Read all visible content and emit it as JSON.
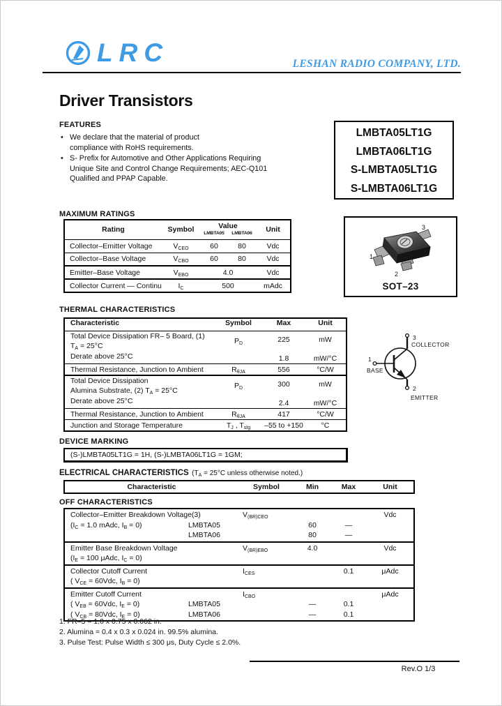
{
  "brand": {
    "logo_text": "LRC",
    "company": "LESHAN RADIO COMPANY, LTD.",
    "blue": "#3E9BE4"
  },
  "title": "Driver Transistors",
  "features": {
    "heading": "FEATURES",
    "items": [
      {
        "lines": [
          "We declare that the material of product",
          "compliance with RoHS requirements."
        ]
      },
      {
        "lines": [
          "S- Prefix for Automotive and Other Applications Requiring",
          "Unique Site and Control Change Requirements; AEC-Q101",
          "Qualified and PPAP Capable."
        ]
      }
    ]
  },
  "parts": [
    "LMBTA05LT1G",
    "LMBTA06LT1G",
    "S-LMBTA05LT1G",
    "S-LMBTA06LT1G"
  ],
  "package": {
    "name": "SOT–23",
    "pin1": "1",
    "pin2": "2",
    "pin3": "3"
  },
  "max_ratings": {
    "heading": "MAXIMUM RATINGS",
    "headers": {
      "rating": "Rating",
      "symbol": "Symbol",
      "value": "Value",
      "dev1": "LMBTA05",
      "dev2": "LMBTA06",
      "unit": "Unit"
    },
    "rows": [
      {
        "rating": "Collector–Emitter Voltage",
        "sym": [
          [
            "V",
            0
          ],
          [
            "CEO",
            1
          ]
        ],
        "v1": "60",
        "v2": "80",
        "unit": "Vdc"
      },
      {
        "rating": "Collector–Base Voltage",
        "sym": [
          [
            "V",
            0
          ],
          [
            "CBO",
            1
          ]
        ],
        "v1": "60",
        "v2": "80",
        "unit": "Vdc"
      },
      {
        "rating": "Emitter–Base Voltage",
        "sym": [
          [
            "V",
            0
          ],
          [
            "EBO",
            1
          ]
        ],
        "v": "4.0",
        "unit": "Vdc"
      },
      {
        "rating": "Collector Current — Continuous",
        "sym": [
          [
            "I",
            0
          ],
          [
            "C",
            1
          ]
        ],
        "v": "500",
        "unit": "mAdc"
      }
    ]
  },
  "thermal": {
    "heading": "THERMAL CHARACTERISTICS",
    "headers": {
      "char": "Characteristic",
      "symbol": "Symbol",
      "max": "Max",
      "unit": "Unit"
    },
    "rows": [
      {
        "l1": "Total Device Dissipation FR– 5 Board, (1)",
        "l2": [
          [
            "T",
            0
          ],
          [
            "A",
            1
          ],
          [
            " = 25°C",
            0
          ]
        ],
        "l3": "Derate above 25°C",
        "sym": [
          [
            "P",
            0
          ],
          [
            "D",
            1
          ]
        ],
        "max1": "225",
        "max2": "1.8",
        "unit1": "mW",
        "unit2": "mW/°C"
      },
      {
        "char": "Thermal Resistance, Junction to Ambient",
        "sym": [
          [
            "R",
            0
          ],
          [
            "θJA",
            1
          ]
        ],
        "max": "556",
        "unit": "°C/W"
      },
      {
        "l1": "Total Device Dissipation",
        "l2": [
          [
            "Alumina Substrate, (2) T",
            0
          ],
          [
            "A",
            1
          ],
          [
            " = 25°C",
            0
          ]
        ],
        "l3": "Derate above 25°C",
        "sym": [
          [
            "P",
            0
          ],
          [
            "D",
            1
          ]
        ],
        "max1": "300",
        "max2": "2.4",
        "unit1": "mW",
        "unit2": "mW/°C"
      },
      {
        "char": "Thermal Resistance, Junction to Ambient",
        "sym": [
          [
            "R",
            0
          ],
          [
            "θJA",
            1
          ]
        ],
        "max": "417",
        "unit": "°C/W"
      },
      {
        "char": "Junction and Storage Temperature",
        "sym": [
          [
            "T",
            0
          ],
          [
            "J",
            1
          ],
          [
            " , T",
            0
          ],
          [
            "stg",
            1
          ]
        ],
        "max": "–55 to +150",
        "unit": "°C"
      }
    ]
  },
  "transistor": {
    "pin1": "1",
    "pin2": "2",
    "pin3": "3",
    "base": "BASE",
    "collector": "COLLECTOR",
    "emitter": "EMITTER"
  },
  "marking": {
    "heading": "DEVICE MARKING",
    "text": "(S-)LMBTA05LT1G = 1H, (S-)LMBTA06LT1G = 1GM;"
  },
  "electrical": {
    "heading": "ELECTRICAL CHARACTERISTICS",
    "note": [
      [
        "(T",
        0
      ],
      [
        "A",
        1
      ],
      [
        " = 25°C unless otherwise noted.)",
        0
      ]
    ],
    "headers": {
      "char": "Characteristic",
      "symbol": "Symbol",
      "min": "Min",
      "max": "Max",
      "unit": "Unit"
    }
  },
  "off": {
    "heading": "OFF CHARACTERISTICS",
    "rows": [
      {
        "char": "Collector–Emitter Breakdown Voltage(3)",
        "sym": [
          [
            "V",
            0
          ],
          [
            "(BR)CEO",
            1
          ]
        ],
        "unit": "Vdc",
        "cond": [
          [
            "(I",
            0
          ],
          [
            "C",
            1
          ],
          [
            " = 1.0 mAdc, I",
            0
          ],
          [
            "B",
            1
          ],
          [
            " = 0)",
            0
          ]
        ],
        "dev1": "LMBTA05",
        "min1": "60",
        "max1": "—",
        "dev2": "LMBTA06",
        "min2": "80",
        "max2": "—"
      },
      {
        "char": "Emitter Base Breakdown Voltage",
        "sym": [
          [
            "V",
            0
          ],
          [
            "(BR)EBO",
            1
          ]
        ],
        "min": "4.0",
        "unit": "Vdc",
        "cond": [
          [
            "(I",
            0
          ],
          [
            "E",
            1
          ],
          [
            " = 100 μAdc, I",
            0
          ],
          [
            "C",
            1
          ],
          [
            " = 0)",
            0
          ]
        ]
      },
      {
        "char": "Collector Cutoff Current",
        "sym": [
          [
            "I",
            0
          ],
          [
            "CES",
            1
          ]
        ],
        "max": "0.1",
        "unit": "μAdc",
        "cond": [
          [
            "( V",
            0
          ],
          [
            "CE",
            1
          ],
          [
            " = 60Vdc,  I",
            0
          ],
          [
            "B",
            1
          ],
          [
            " = 0)",
            0
          ]
        ]
      },
      {
        "char": "Emitter Cutoff Current",
        "sym": [
          [
            "I",
            0
          ],
          [
            "CBO",
            1
          ]
        ],
        "unit": "μAdc",
        "cond1": [
          [
            "( V",
            0
          ],
          [
            "EB",
            1
          ],
          [
            " = 60Vdc,  I",
            0
          ],
          [
            "E",
            1
          ],
          [
            " = 0)",
            0
          ]
        ],
        "dev1": "LMBTA05",
        "min1": "—",
        "max1": "0.1",
        "cond2": [
          [
            "( V",
            0
          ],
          [
            "CB",
            1
          ],
          [
            " = 80Vdc,  I",
            0
          ],
          [
            "E",
            1
          ],
          [
            " = 0)",
            0
          ]
        ],
        "dev2": "LMBTA06",
        "min2": "—",
        "max2": "0.1"
      }
    ]
  },
  "notes": [
    "1. FR–5 = 1.0 x 0.75 x 0.062 in.",
    "2. Alumina = 0.4 x 0.3 x 0.024 in. 99.5% alumina.",
    "3. Pulse Test: Pulse Width ≤ 300 μs, Duty Cycle ≤ 2.0%."
  ],
  "footer": {
    "rev": "Rev.O  1/3"
  }
}
